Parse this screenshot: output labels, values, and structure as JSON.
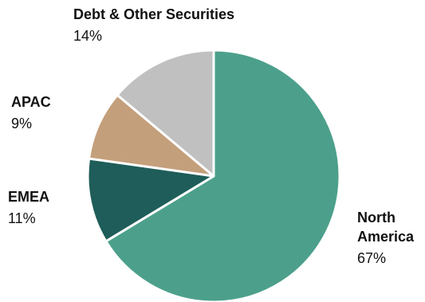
{
  "chart_data": {
    "type": "pie",
    "title": "",
    "legend": "none",
    "slices": [
      {
        "label": [
          "North",
          "America"
        ],
        "value_label": "67%",
        "value": 67,
        "color": "#4ca08b"
      },
      {
        "label": [
          "EMEA"
        ],
        "value_label": "11%",
        "value": 11,
        "color": "#1e5d59"
      },
      {
        "label": [
          "APAC"
        ],
        "value_label": "9%",
        "value": 9,
        "color": "#c49f7b"
      },
      {
        "label": [
          "Debt & Other Securities"
        ],
        "value_label": "14%",
        "value": 14,
        "color": "#c0c0c0"
      }
    ]
  }
}
